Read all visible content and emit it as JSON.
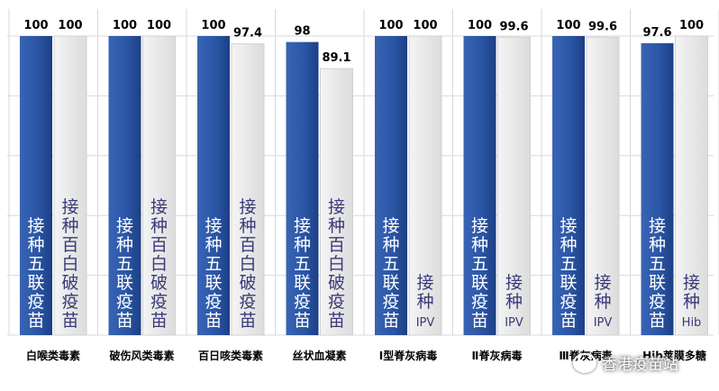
{
  "chart_data": {
    "type": "bar",
    "categories": [
      "白喉类毒素",
      "破伤风类毒素",
      "百日咳类毒素",
      "丝状血凝素",
      "Ⅰ型脊灰病毒",
      "Ⅱ脊灰病毒",
      "Ⅲ脊灰病毒",
      "Hib荚膜多糖"
    ],
    "series": [
      {
        "name": "接种五联疫苗",
        "values": [
          100,
          100,
          100,
          98,
          100,
          100,
          100,
          97.6
        ],
        "value_labels": [
          "100",
          "100",
          "100",
          "98",
          "100",
          "100",
          "100",
          "97.6"
        ],
        "bar_labels": [
          "接种五联疫苗",
          "接种五联疫苗",
          "接种五联疫苗",
          "接种五联疫苗",
          "接种五联疫苗",
          "接种五联疫苗",
          "接种五联疫苗",
          "接种五联疫苗"
        ]
      },
      {
        "name": "对照组",
        "values": [
          100,
          100,
          97.4,
          89.1,
          100,
          99.6,
          99.6,
          100
        ],
        "value_labels": [
          "100",
          "100",
          "97.4",
          "89.1",
          "100",
          "99.6",
          "99.6",
          "100"
        ],
        "bar_labels": [
          "接种百白破疫苗",
          "接种百白破疫苗",
          "接种百白破疫苗",
          "接种百白破疫苗",
          "接种IPV",
          "接种IPV",
          "接种IPV",
          "接种Hib"
        ]
      }
    ],
    "ylim": [
      0,
      100
    ],
    "grid": true,
    "legend": "none",
    "colors": {
      "series1": "#2b56a6",
      "series1_dark": "#1d3f84",
      "series2": "#ececec",
      "series2_edge": "#d2d2d2",
      "grid": "#d9d9d9",
      "text": "#000000"
    }
  },
  "watermark": {
    "text": "香港疫苗站",
    "icon": "chat-bubble-icon"
  }
}
